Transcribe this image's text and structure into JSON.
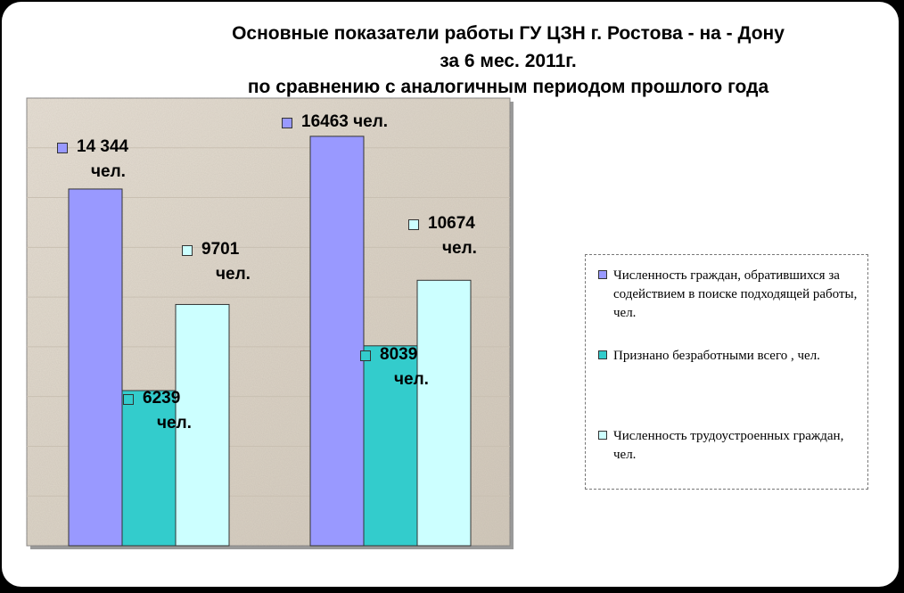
{
  "chart_data": {
    "type": "bar",
    "title": [
      "Основные показатели работы ГУ ЦЗН г. Ростова - на - Дону",
      "за 6 мес. 2011г.",
      "по сравнению с аналогичным периодом прошлого года"
    ],
    "categories": [
      "",
      ""
    ],
    "series": [
      {
        "name": "Численность граждан, обратившихся за содействием в поиске подходящей работы, чел.",
        "color": "#9999ff",
        "values": [
          14344,
          16463
        ],
        "labels": [
          [
            "14 344",
            "чел."
          ],
          [
            "16463 чел."
          ]
        ]
      },
      {
        "name": "Признано безработными всего , чел.",
        "color": "#33cccc",
        "values": [
          6239,
          8039
        ],
        "labels": [
          [
            "6239",
            "чел."
          ],
          [
            "8039",
            "чел."
          ]
        ]
      },
      {
        "name": "Численность трудоустроенных граждан, чел.",
        "color": "#ccffff",
        "values": [
          9701,
          10674
        ],
        "labels": [
          [
            "9701",
            "чел."
          ],
          [
            "10674",
            "чел."
          ]
        ]
      }
    ],
    "ylim": [
      0,
      18000
    ],
    "grid": true,
    "legend": "right"
  }
}
